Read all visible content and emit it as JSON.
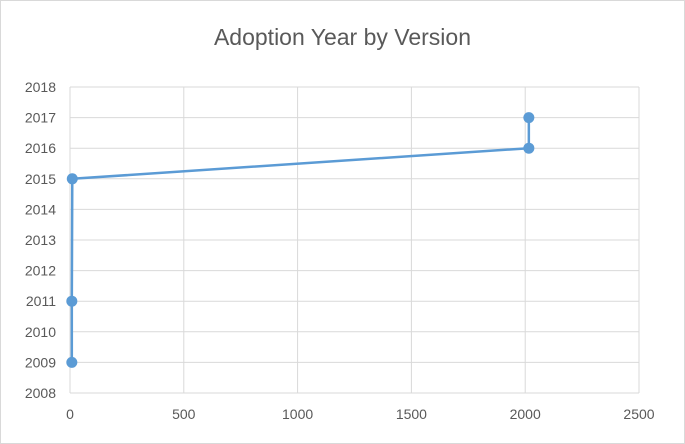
{
  "chart_data": {
    "type": "scatter",
    "title": "Adoption Year by Version",
    "xlabel": "",
    "ylabel": "",
    "xlim": [
      0,
      2500
    ],
    "ylim": [
      2008,
      2018
    ],
    "x_ticks": [
      0,
      500,
      1000,
      1500,
      2000,
      2500
    ],
    "y_ticks": [
      2008,
      2009,
      2010,
      2011,
      2012,
      2013,
      2014,
      2015,
      2016,
      2017,
      2018
    ],
    "grid": true,
    "lines_connecting_points": true,
    "series": [
      {
        "color": "#5b9bd5",
        "points": [
          {
            "x": 8,
            "y": 2009
          },
          {
            "x": 8,
            "y": 2011
          },
          {
            "x": 10,
            "y": 2015
          },
          {
            "x": 2016,
            "y": 2016
          },
          {
            "x": 2016,
            "y": 2017
          }
        ]
      }
    ]
  }
}
